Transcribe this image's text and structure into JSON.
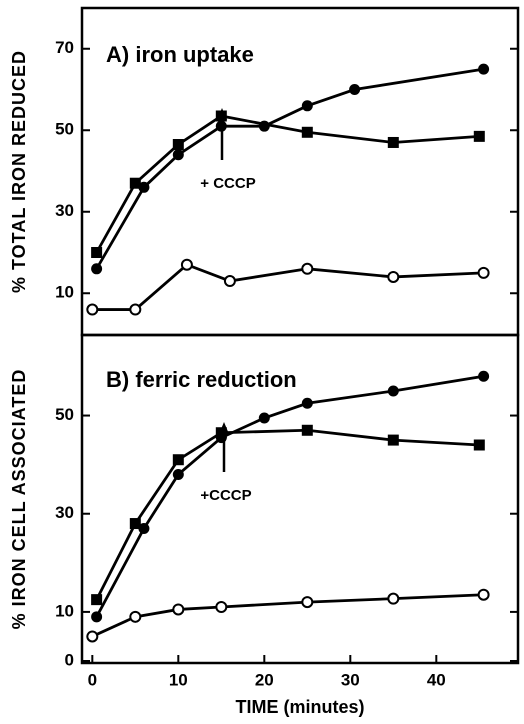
{
  "chart_data": [
    {
      "type": "line",
      "title": "A) iron uptake",
      "ylabel": "% TOTAL IRON REDUCED",
      "annotations": [
        "+ CCCP"
      ],
      "xlim": [
        -1.2,
        49.5
      ],
      "ylim": [
        0,
        80
      ],
      "yticks": [
        10,
        30,
        50,
        70
      ],
      "series": [
        {
          "marker": "filled-circle",
          "color": "#000000",
          "x": [
            0.5,
            6,
            10,
            15,
            20,
            25,
            30.5,
            45.5
          ],
          "values": [
            16,
            36,
            44,
            51,
            51,
            56,
            60,
            65
          ]
        },
        {
          "marker": "square",
          "color": "#000000",
          "x": [
            0.5,
            5,
            10,
            15,
            25,
            35,
            45
          ],
          "values": [
            20,
            37,
            46.5,
            53.5,
            49.5,
            47,
            48.5
          ]
        },
        {
          "marker": "open-circle",
          "color": "#000000",
          "x": [
            0,
            5,
            11,
            16,
            25,
            35,
            45.5
          ],
          "values": [
            6,
            6,
            17,
            13,
            16,
            14,
            15
          ]
        }
      ]
    },
    {
      "type": "line",
      "title": "B) ferric reduction",
      "ylabel": "% IRON CELL ASSOCIATED",
      "xlabel": "TIME (minutes)",
      "annotations": [
        "+CCCP"
      ],
      "xlim": [
        -1.2,
        49.5
      ],
      "ylim": [
        0,
        66
      ],
      "yticks": [
        0,
        10,
        30,
        50
      ],
      "xticks": [
        0,
        10,
        20,
        30,
        40
      ],
      "series": [
        {
          "marker": "filled-circle",
          "color": "#000000",
          "x": [
            0.5,
            6,
            10,
            15,
            20,
            25,
            35,
            45.5
          ],
          "values": [
            9,
            27,
            38,
            45.5,
            49.5,
            52.5,
            55,
            58
          ]
        },
        {
          "marker": "square",
          "color": "#000000",
          "x": [
            0.5,
            5,
            10,
            15,
            25,
            35,
            45
          ],
          "values": [
            12.5,
            28,
            41,
            46.5,
            47,
            45,
            44
          ]
        },
        {
          "marker": "open-circle",
          "color": "#000000",
          "x": [
            0,
            5,
            10,
            15,
            25,
            35,
            45.5
          ],
          "values": [
            5,
            9,
            10.5,
            11,
            12,
            12.7,
            13.5
          ]
        }
      ]
    }
  ]
}
